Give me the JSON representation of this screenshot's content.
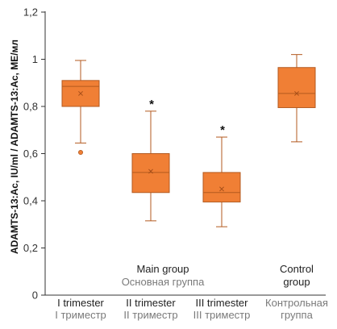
{
  "chart_data": {
    "type": "box",
    "ylabel": "ADAMTS-13:Ac, IU/ml / ADAMTS-13:Ac, МЕ/мл",
    "ylim": [
      0,
      1.2
    ],
    "yticks": [
      0,
      0.2,
      0.4,
      0.6,
      0.8,
      1,
      1.2
    ],
    "ytick_labels": [
      "0",
      "0,2",
      "0,4",
      "0,6",
      "0,8",
      "1",
      "1,2"
    ],
    "grid": false,
    "colors": {
      "box_fill": "#f07f35",
      "box_stroke": "#b35a1f",
      "mean_marker": "#a8501a",
      "whisker": "#b35a1f"
    },
    "categories": [
      {
        "label_en": "I trimester",
        "label_ru": "I триместр"
      },
      {
        "label_en": "II trimester",
        "label_ru": "II триместр"
      },
      {
        "label_en": "III trimester",
        "label_ru": "III триместр"
      },
      {
        "label_en": "",
        "label_ru": "Контрольная группа"
      }
    ],
    "groups": [
      {
        "label_en": "Main group",
        "label_ru": "Основная группа",
        "spans": [
          0,
          2
        ]
      },
      {
        "label_en": "Control group",
        "label_ru": "",
        "spans": [
          3,
          3
        ]
      }
    ],
    "boxes": [
      {
        "whisker_low": 0.645,
        "q1": 0.8,
        "median": 0.885,
        "q3": 0.91,
        "whisker_high": 0.995,
        "mean": 0.855,
        "outliers": [
          0.605
        ],
        "significant": false
      },
      {
        "whisker_low": 0.315,
        "q1": 0.435,
        "median": 0.52,
        "q3": 0.6,
        "whisker_high": 0.78,
        "mean": 0.525,
        "outliers": [],
        "significant": true
      },
      {
        "whisker_low": 0.29,
        "q1": 0.395,
        "median": 0.435,
        "q3": 0.52,
        "whisker_high": 0.67,
        "mean": 0.45,
        "outliers": [],
        "significant": true
      },
      {
        "whisker_low": 0.65,
        "q1": 0.795,
        "median": 0.855,
        "q3": 0.965,
        "whisker_high": 1.02,
        "mean": 0.855,
        "outliers": [],
        "significant": false
      }
    ],
    "significance_marker": "*"
  }
}
